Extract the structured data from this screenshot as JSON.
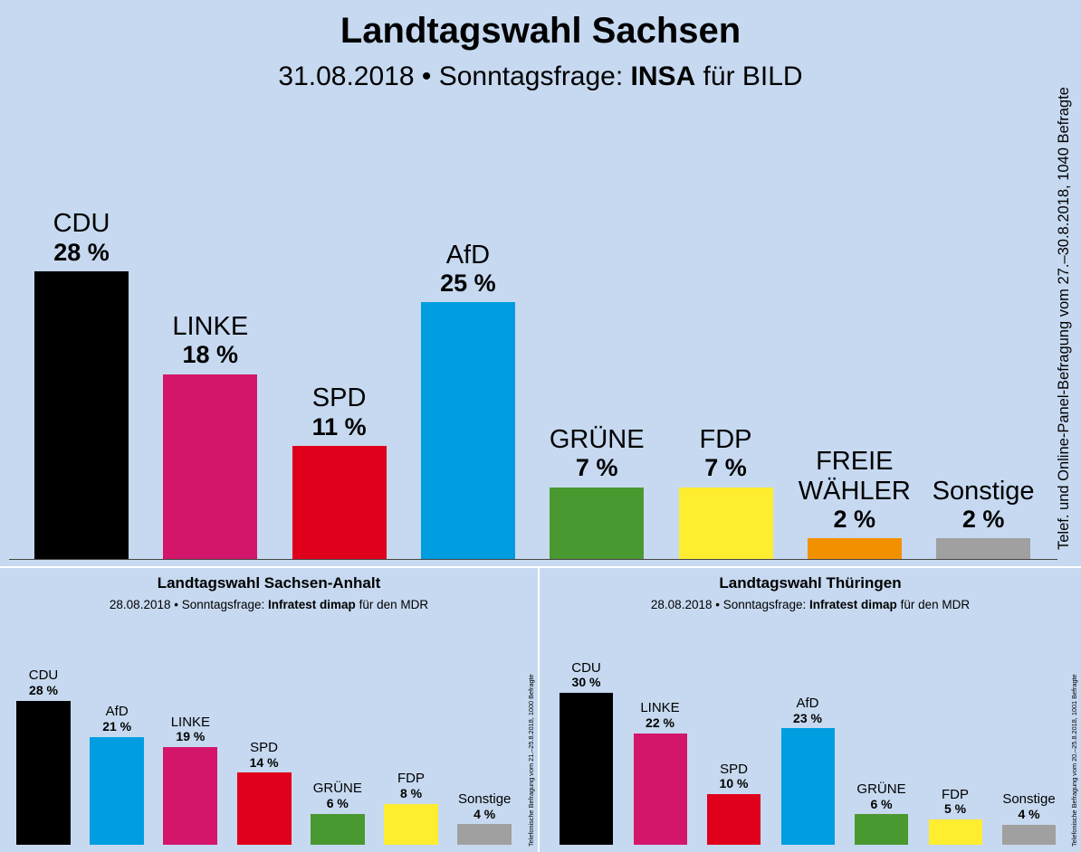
{
  "main": {
    "title": "Landtagswahl Sachsen",
    "subtitle_prefix": "31.08.2018 • Sonntagsfrage: ",
    "subtitle_institute": "INSA",
    "subtitle_suffix": " für BILD",
    "side_note": "Telef. und Online-Panel-Befragung vom 27.–30.8.2018, 1040 Befragte"
  },
  "left_panel": {
    "title": "Landtagswahl Sachsen-Anhalt",
    "subtitle_prefix": "28.08.2018 • Sonntagsfrage: ",
    "subtitle_institute": "Infratest dimap",
    "subtitle_suffix": " für den MDR",
    "side_note": "Telefonische Befragung vom 21.–25.8.2018, 1000 Befragte"
  },
  "right_panel": {
    "title": "Landtagswahl Thüringen",
    "subtitle_prefix": "28.08.2018 • Sonntagsfrage: ",
    "subtitle_institute": "Infratest dimap",
    "subtitle_suffix": " für den MDR",
    "side_note": "Telefonische Befragung vom 20.–25.8.2018, 1001 Befragte"
  },
  "colors": {
    "background": "#c6d9f0",
    "CDU": "#000000",
    "LINKE": "#d4166b",
    "SPD": "#e0001b",
    "AfD": "#009ee0",
    "GRÜNE": "#4a9830",
    "FDP": "#ffed30",
    "FREIE WÄHLER": "#f29100",
    "Sonstige": "#a0a0a0"
  },
  "chart_data": [
    {
      "type": "bar",
      "title": "Landtagswahl Sachsen",
      "categories": [
        "CDU",
        "LINKE",
        "SPD",
        "AfD",
        "GRÜNE",
        "FDP",
        "FREIE WÄHLER",
        "Sonstige"
      ],
      "display_names": [
        "CDU",
        "LINKE",
        "SPD",
        "AfD",
        "GRÜNE",
        "FDP",
        "FREIE\nWÄHLER",
        "Sonstige"
      ],
      "values": [
        28,
        18,
        11,
        25,
        7,
        7,
        2,
        2
      ],
      "labels": [
        "28 %",
        "18 %",
        "11 %",
        "25 %",
        "7 %",
        "7 %",
        "2 %",
        "2 %"
      ],
      "unit": "%"
    },
    {
      "type": "bar",
      "title": "Landtagswahl Sachsen-Anhalt",
      "categories": [
        "CDU",
        "AfD",
        "LINKE",
        "SPD",
        "GRÜNE",
        "FDP",
        "Sonstige"
      ],
      "display_names": [
        "CDU",
        "AfD",
        "LINKE",
        "SPD",
        "GRÜNE",
        "FDP",
        "Sonstige"
      ],
      "values": [
        28,
        21,
        19,
        14,
        6,
        8,
        4
      ],
      "labels": [
        "28 %",
        "21 %",
        "19 %",
        "14 %",
        "6 %",
        "8 %",
        "4 %"
      ],
      "unit": "%"
    },
    {
      "type": "bar",
      "title": "Landtagswahl Thüringen",
      "categories": [
        "CDU",
        "LINKE",
        "SPD",
        "AfD",
        "GRÜNE",
        "FDP",
        "Sonstige"
      ],
      "display_names": [
        "CDU",
        "LINKE",
        "SPD",
        "AfD",
        "GRÜNE",
        "FDP",
        "Sonstige"
      ],
      "values": [
        30,
        22,
        10,
        23,
        6,
        5,
        4
      ],
      "labels": [
        "30 %",
        "22 %",
        "10 %",
        "23 %",
        "6 %",
        "5 %",
        "4 %"
      ],
      "unit": "%"
    }
  ]
}
